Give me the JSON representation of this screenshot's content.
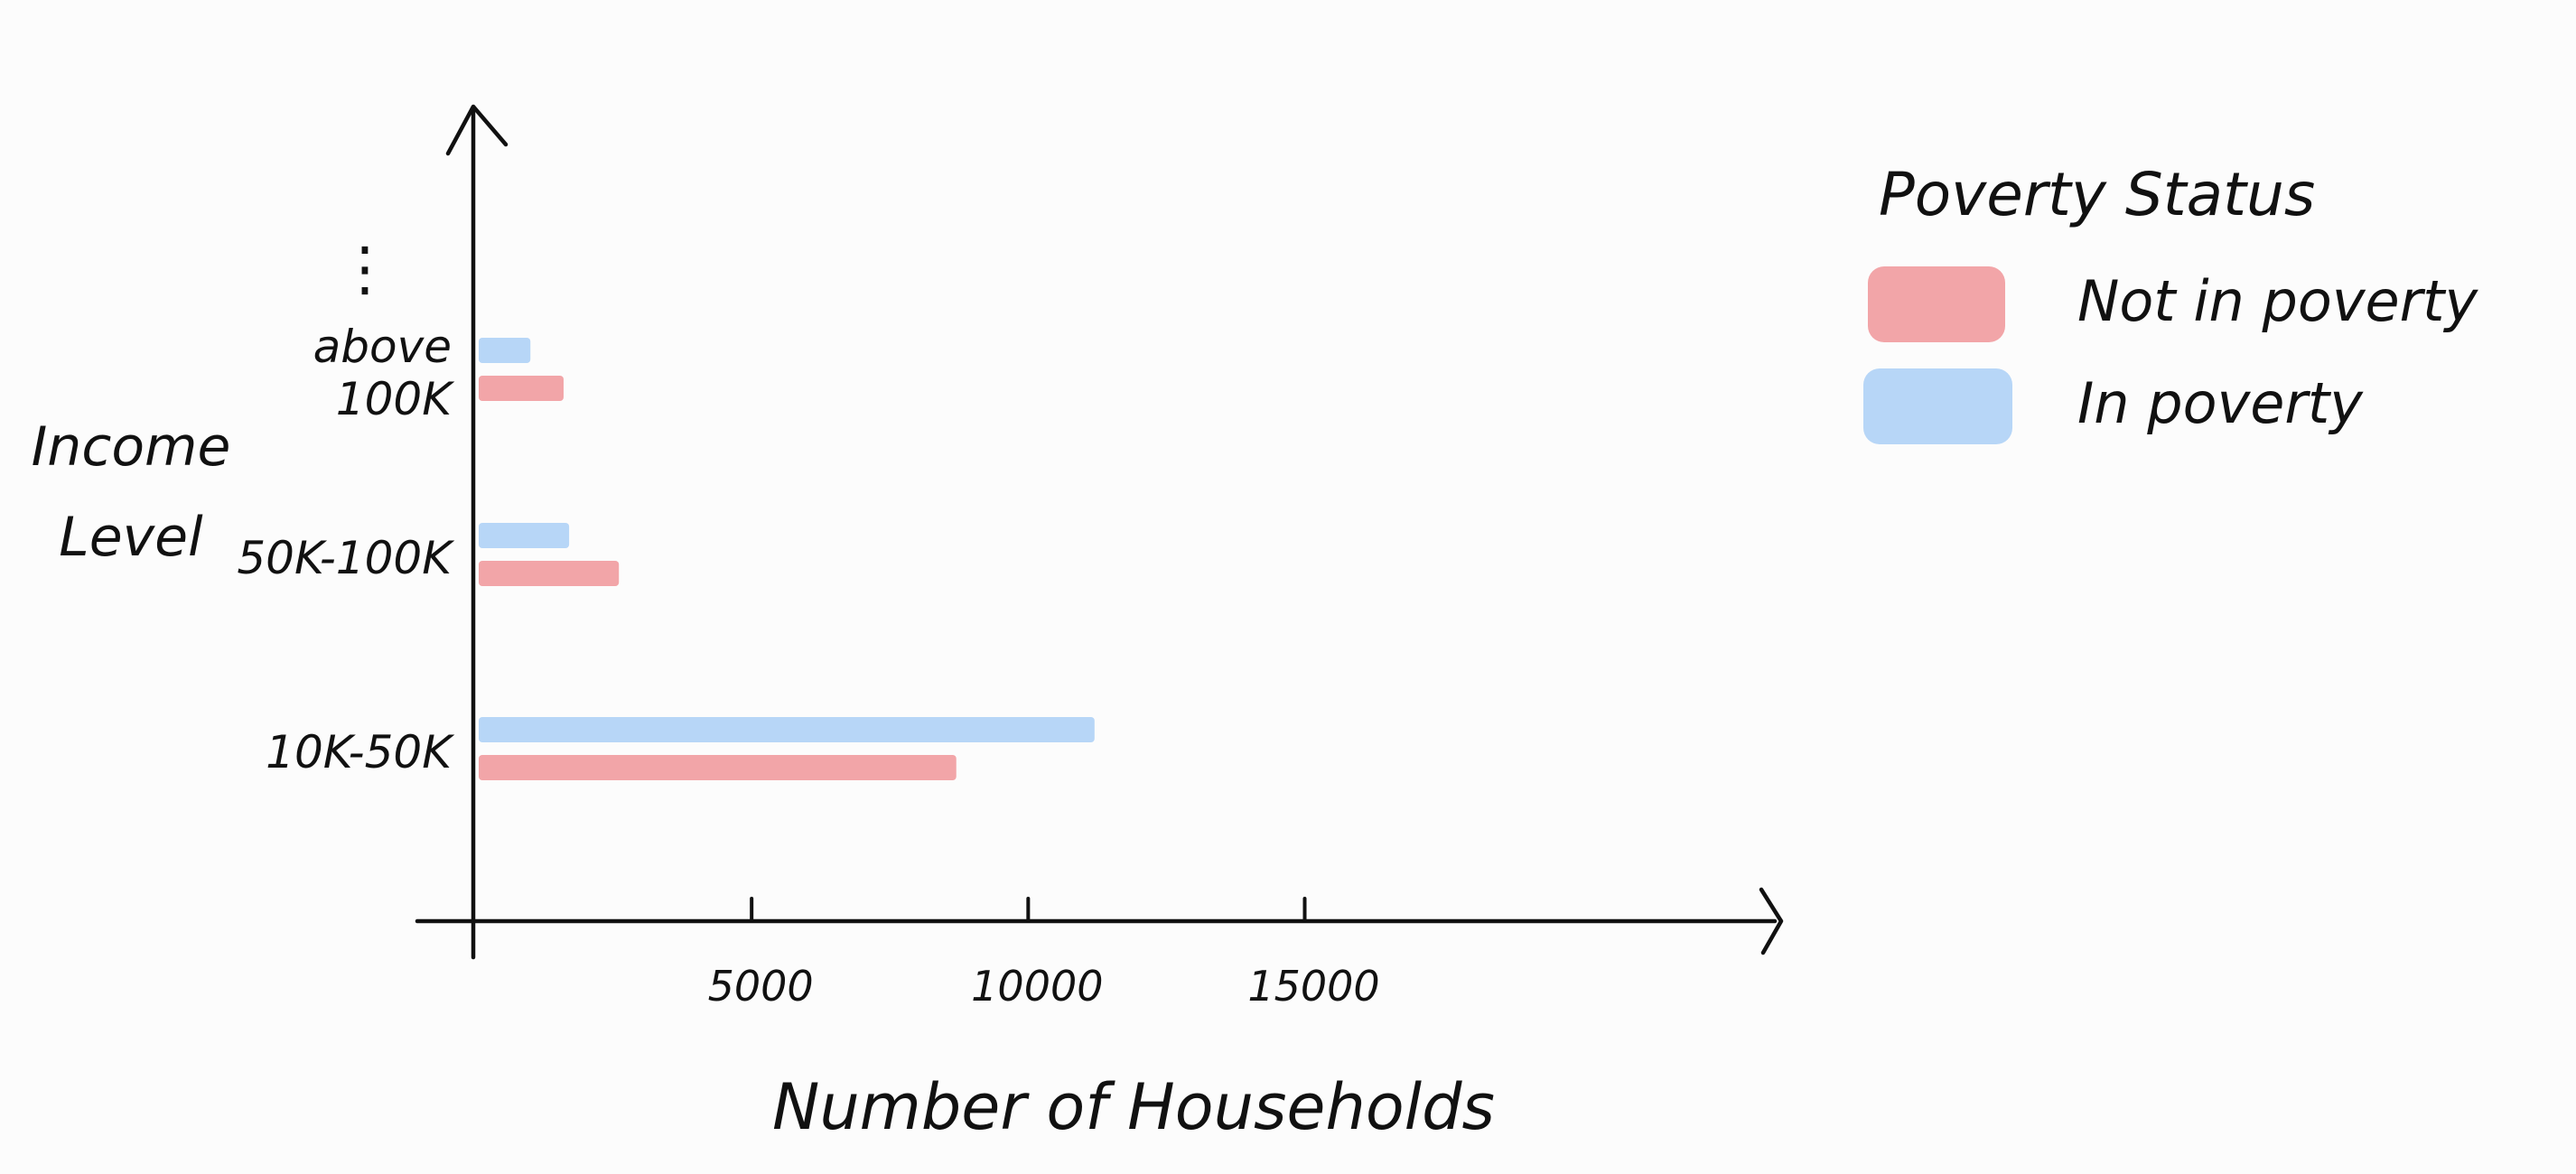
{
  "chart_data": {
    "type": "bar",
    "orientation": "horizontal",
    "title": "",
    "xlabel": "Number of Households",
    "ylabel_lines": [
      "Income",
      "Level"
    ],
    "categories": [
      "10K-50K",
      "50K-100K",
      "above 100K"
    ],
    "category_label_lines": [
      [
        "10K-50K"
      ],
      [
        "50K-100K"
      ],
      [
        "above",
        "100K"
      ]
    ],
    "continuation_marker": "⋮",
    "x_ticks": [
      5000,
      10000,
      15000
    ],
    "x_tick_labels": [
      "5000",
      "10000",
      "15000"
    ],
    "xlim": [
      0,
      23500
    ],
    "grid": false,
    "legend": {
      "title": "Poverty Status",
      "placement": "right"
    },
    "series": [
      {
        "name": "Not in poverty",
        "color": "#f2a5a8",
        "values": [
          8700,
          2600,
          1600
        ]
      },
      {
        "name": "In poverty",
        "color": "#b7d6f7",
        "values": [
          11200,
          1700,
          1000
        ]
      }
    ]
  }
}
